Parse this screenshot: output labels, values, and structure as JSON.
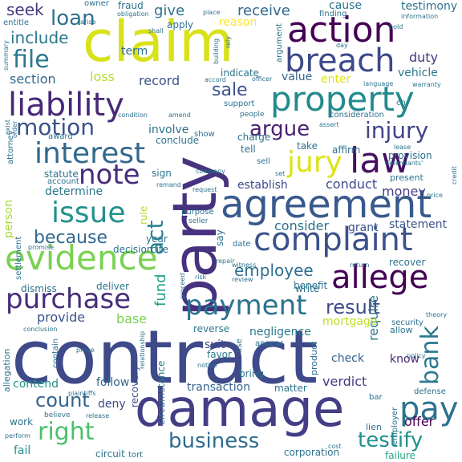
{
  "words": [
    {
      "text": "contract",
      "color": "#3e4a89"
    },
    {
      "text": "party",
      "color": "#46327e"
    },
    {
      "text": "damage",
      "color": "#433e85"
    },
    {
      "text": "claim",
      "color": "#d8e219"
    },
    {
      "text": "agreement",
      "color": "#38598c"
    },
    {
      "text": "action",
      "color": "#440154"
    },
    {
      "text": "property",
      "color": "#238a8d"
    },
    {
      "text": "evidence",
      "color": "#7ad151"
    },
    {
      "text": "liability",
      "color": "#482878"
    },
    {
      "text": "complaint",
      "color": "#3b528b"
    },
    {
      "text": "breach",
      "color": "#3e4989"
    },
    {
      "text": "allege",
      "color": "#440154"
    },
    {
      "text": "interest",
      "color": "#31688e"
    },
    {
      "text": "payment",
      "color": "#2c728e"
    },
    {
      "text": "purchase",
      "color": "#472d7b"
    },
    {
      "text": "note",
      "color": "#472c7a"
    },
    {
      "text": "law",
      "color": "#471063"
    },
    {
      "text": "pay",
      "color": "#2c728e"
    },
    {
      "text": "issue",
      "color": "#21918c"
    },
    {
      "text": "jury",
      "color": "#dde318"
    },
    {
      "text": "file",
      "color": "#2a788e"
    },
    {
      "text": "business",
      "color": "#2f6c8e"
    },
    {
      "text": "right",
      "color": "#4ac16d"
    },
    {
      "text": "bank",
      "color": "#2a788e"
    },
    {
      "text": "testify",
      "color": "#21918c"
    },
    {
      "text": "motion",
      "color": "#3b528b"
    },
    {
      "text": "injury",
      "color": "#414487"
    },
    {
      "text": "because",
      "color": "#31688e"
    },
    {
      "text": "loan",
      "color": "#2d708e"
    },
    {
      "text": "count",
      "color": "#33638d"
    },
    {
      "text": "argue",
      "color": "#482173"
    },
    {
      "text": "result",
      "color": "#3e4989"
    },
    {
      "text": "act",
      "color": "#26828e"
    },
    {
      "text": "employee",
      "color": "#2e6f8e"
    },
    {
      "text": "sale",
      "color": "#3b528b"
    },
    {
      "text": "include",
      "color": "#2a788e"
    },
    {
      "text": "fund",
      "color": "#1f9f88"
    },
    {
      "text": "seek",
      "color": "#443983"
    },
    {
      "text": "give",
      "color": "#2c728e"
    },
    {
      "text": "receive",
      "color": "#31688e"
    },
    {
      "text": "section",
      "color": "#31688e"
    },
    {
      "text": "record",
      "color": "#3b528b"
    },
    {
      "text": "duty",
      "color": "#453781"
    },
    {
      "text": "provide",
      "color": "#3b528b"
    },
    {
      "text": "consider",
      "color": "#2c728e"
    },
    {
      "text": "conduct",
      "color": "#3e4a89"
    },
    {
      "text": "money",
      "color": "#433e85"
    },
    {
      "text": "person",
      "color": "#a5db36"
    },
    {
      "text": "determine",
      "color": "#2a788e"
    },
    {
      "text": "base",
      "color": "#7ad151"
    },
    {
      "text": "transaction",
      "color": "#34618d"
    },
    {
      "text": "verdict",
      "color": "#453882"
    },
    {
      "text": "follow",
      "color": "#31688e"
    },
    {
      "text": "deny",
      "color": "#3e4a89"
    },
    {
      "text": "offer",
      "color": "#440154"
    },
    {
      "text": "corporation",
      "color": "#2c728e"
    },
    {
      "text": "failure",
      "color": "#22a785"
    },
    {
      "text": "circumstance",
      "color": "#2a788e"
    },
    {
      "text": "loss",
      "color": "#b5de2b"
    },
    {
      "text": "term",
      "color": "#2d708e"
    },
    {
      "text": "enter",
      "color": "#dde318"
    },
    {
      "text": "vehicle",
      "color": "#2a788e"
    },
    {
      "text": "value",
      "color": "#33638d"
    },
    {
      "text": "involve",
      "color": "#2c728e"
    },
    {
      "text": "conclude",
      "color": "#2c728e"
    },
    {
      "text": "establish",
      "color": "#3e4989"
    },
    {
      "text": "require",
      "color": "#2a788e"
    },
    {
      "text": "negligence",
      "color": "#2a788e"
    },
    {
      "text": "statement",
      "color": "#3b528b"
    },
    {
      "text": "grant",
      "color": "#3b528b"
    },
    {
      "text": "mortgage",
      "color": "#bddf26"
    },
    {
      "text": "check",
      "color": "#33638d"
    },
    {
      "text": "know",
      "color": "#482878"
    },
    {
      "text": "contend",
      "color": "#21918c"
    },
    {
      "text": "suit",
      "color": "#3e4989"
    },
    {
      "text": "favor",
      "color": "#2a788e"
    },
    {
      "text": "reverse",
      "color": "#2a788e"
    },
    {
      "text": "recovery",
      "color": "#3e4a89"
    },
    {
      "text": "decision",
      "color": "#2c728e"
    },
    {
      "text": "cite",
      "color": "#2c728e"
    },
    {
      "text": "year",
      "color": "#2c728e"
    },
    {
      "text": "rule",
      "color": "#b5de2b"
    },
    {
      "text": "dismiss",
      "color": "#2c728e"
    },
    {
      "text": "deliver",
      "color": "#2c728e"
    },
    {
      "text": "benefit",
      "color": "#2c728e"
    },
    {
      "text": "recover",
      "color": "#2c728e"
    },
    {
      "text": "work",
      "color": "#2c728e"
    },
    {
      "text": "fail",
      "color": "#21918c"
    },
    {
      "text": "circuit",
      "color": "#2c728e"
    },
    {
      "text": "tort",
      "color": "#2c728e"
    },
    {
      "text": "write",
      "color": "#2c728e"
    },
    {
      "text": "matter",
      "color": "#2c728e"
    },
    {
      "text": "bring",
      "color": "#2c728e"
    },
    {
      "text": "appear",
      "color": "#2c728e"
    },
    {
      "text": "reason",
      "color": "#fde725"
    },
    {
      "text": "argument",
      "color": "#2c728e"
    },
    {
      "text": "apply",
      "color": "#2c728e"
    },
    {
      "text": "fraud",
      "color": "#2c728e"
    },
    {
      "text": "obligation",
      "color": "#2c728e"
    },
    {
      "text": "owner",
      "color": "#2c728e"
    },
    {
      "text": "entitle",
      "color": "#2c728e"
    },
    {
      "text": "cause",
      "color": "#2c728e"
    },
    {
      "text": "testimony",
      "color": "#2c728e"
    },
    {
      "text": "finding",
      "color": "#2c728e"
    },
    {
      "text": "information",
      "color": "#2c728e"
    },
    {
      "text": "indicate",
      "color": "#2c728e"
    },
    {
      "text": "support",
      "color": "#2c728e"
    },
    {
      "text": "people",
      "color": "#2c728e"
    },
    {
      "text": "language",
      "color": "#2c728e"
    },
    {
      "text": "warranty",
      "color": "#2c728e"
    },
    {
      "text": "consideration",
      "color": "#2c728e"
    },
    {
      "text": "affirm",
      "color": "#2c728e"
    },
    {
      "text": "lease",
      "color": "#2c728e"
    },
    {
      "text": "provision",
      "color": "#2c728e"
    },
    {
      "text": "present",
      "color": "#2c728e"
    },
    {
      "text": "defendants'",
      "color": "#2c728e"
    },
    {
      "text": "take",
      "color": "#2c728e"
    },
    {
      "text": "tell",
      "color": "#2c728e"
    },
    {
      "text": "charge",
      "color": "#2c728e"
    },
    {
      "text": "sell",
      "color": "#2c728e"
    },
    {
      "text": "show",
      "color": "#2c728e"
    },
    {
      "text": "statute",
      "color": "#2c728e"
    },
    {
      "text": "account",
      "color": "#2c728e"
    },
    {
      "text": "award",
      "color": "#2c728e"
    },
    {
      "text": "sign",
      "color": "#2c728e"
    },
    {
      "text": "purpose",
      "color": "#2c728e"
    },
    {
      "text": "seller",
      "color": "#2c728e"
    },
    {
      "text": "settlement",
      "color": "#2c728e"
    },
    {
      "text": "allegation",
      "color": "#2c728e"
    },
    {
      "text": "employer",
      "color": "#2c728e"
    },
    {
      "text": "security",
      "color": "#2c728e"
    },
    {
      "text": "allow",
      "color": "#2c728e"
    },
    {
      "text": "lien",
      "color": "#2c728e"
    },
    {
      "text": "bar",
      "color": "#2c728e"
    },
    {
      "text": "product",
      "color": "#2c728e"
    },
    {
      "text": "defense",
      "color": "#2c728e"
    },
    {
      "text": "relationship",
      "color": "#2c728e"
    },
    {
      "text": "attorney",
      "color": "#2c728e"
    },
    {
      "text": "company",
      "color": "#2c728e"
    },
    {
      "text": "request",
      "color": "#2c728e"
    },
    {
      "text": "date",
      "color": "#2c728e"
    },
    {
      "text": "say",
      "color": "#2c728e"
    },
    {
      "text": "repair",
      "color": "#2c728e"
    },
    {
      "text": "return",
      "color": "#2c728e"
    },
    {
      "text": "price",
      "color": "#2c728e"
    },
    {
      "text": "theory",
      "color": "#2c728e"
    },
    {
      "text": "policy",
      "color": "#2c728e"
    },
    {
      "text": "notice",
      "color": "#2c728e"
    },
    {
      "text": "review",
      "color": "#2c728e"
    },
    {
      "text": "use",
      "color": "#2c728e"
    },
    {
      "text": "contain",
      "color": "#2c728e"
    },
    {
      "text": "proceed",
      "color": "#2c728e"
    },
    {
      "text": "believe",
      "color": "#2c728e"
    },
    {
      "text": "release",
      "color": "#2c728e"
    },
    {
      "text": "perform",
      "color": "#2c728e"
    },
    {
      "text": "conclusion",
      "color": "#2c728e"
    },
    {
      "text": "prove",
      "color": "#2c728e"
    },
    {
      "text": "plaintiffs",
      "color": "#2c728e"
    },
    {
      "text": "witness",
      "color": "#2c728e"
    },
    {
      "text": "risk",
      "color": "#2c728e"
    },
    {
      "text": "promise",
      "color": "#2c728e"
    },
    {
      "text": "cost",
      "color": "#2c728e"
    },
    {
      "text": "amend",
      "color": "#2c728e"
    },
    {
      "text": "condition",
      "color": "#2c728e"
    },
    {
      "text": "accord",
      "color": "#2c728e"
    },
    {
      "text": "officer",
      "color": "#2c728e"
    },
    {
      "text": "day",
      "color": "#2c728e"
    },
    {
      "text": "place",
      "color": "#2c728e"
    },
    {
      "text": "building",
      "color": "#2c728e"
    },
    {
      "text": "summary",
      "color": "#2c728e"
    },
    {
      "text": "assert",
      "color": "#2c728e"
    },
    {
      "text": "exist",
      "color": "#2c728e"
    },
    {
      "text": "order",
      "color": "#2c728e"
    },
    {
      "text": "set",
      "color": "#2c728e"
    },
    {
      "text": "remand",
      "color": "#2c728e"
    },
    {
      "text": "credit",
      "color": "#2c728e"
    },
    {
      "text": "ch",
      "color": "#2c728e"
    },
    {
      "text": "rely",
      "color": "#2c728e"
    },
    {
      "text": "arise",
      "color": "#2c728e"
    },
    {
      "text": "hold",
      "color": "#2c728e"
    },
    {
      "text": "shall",
      "color": "#2c728e"
    }
  ]
}
